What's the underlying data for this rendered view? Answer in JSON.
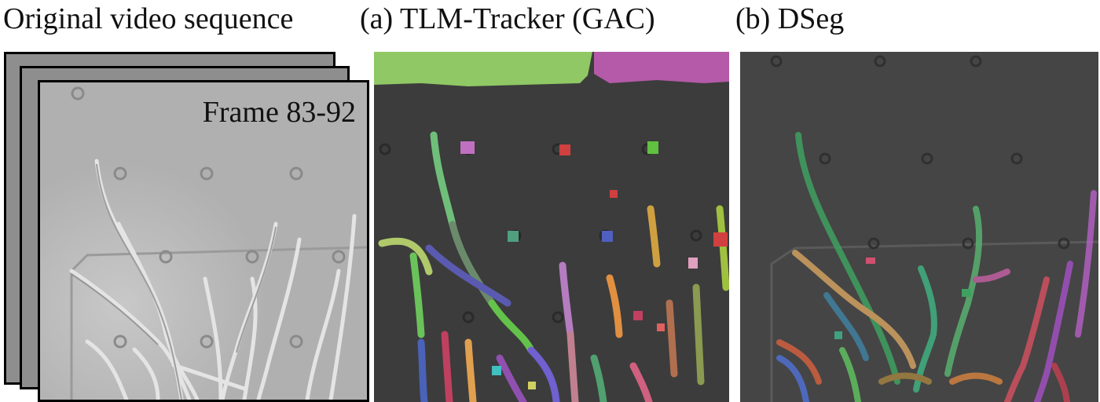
{
  "captions": {
    "original": "Original video sequence",
    "panel_a": "(a)  TLM-Tracker (GAC)",
    "panel_b": "(b)  DSeg"
  },
  "stack": {
    "frame_label": "Frame 83-92"
  },
  "colors": {
    "frame_border": "#000000",
    "original_background": "#b4b4b4",
    "panel_a_background": "#3c3c3c",
    "panel_b_background": "#454545",
    "top_left_region": "#8fc864",
    "top_right_region": "#b45aa8"
  }
}
